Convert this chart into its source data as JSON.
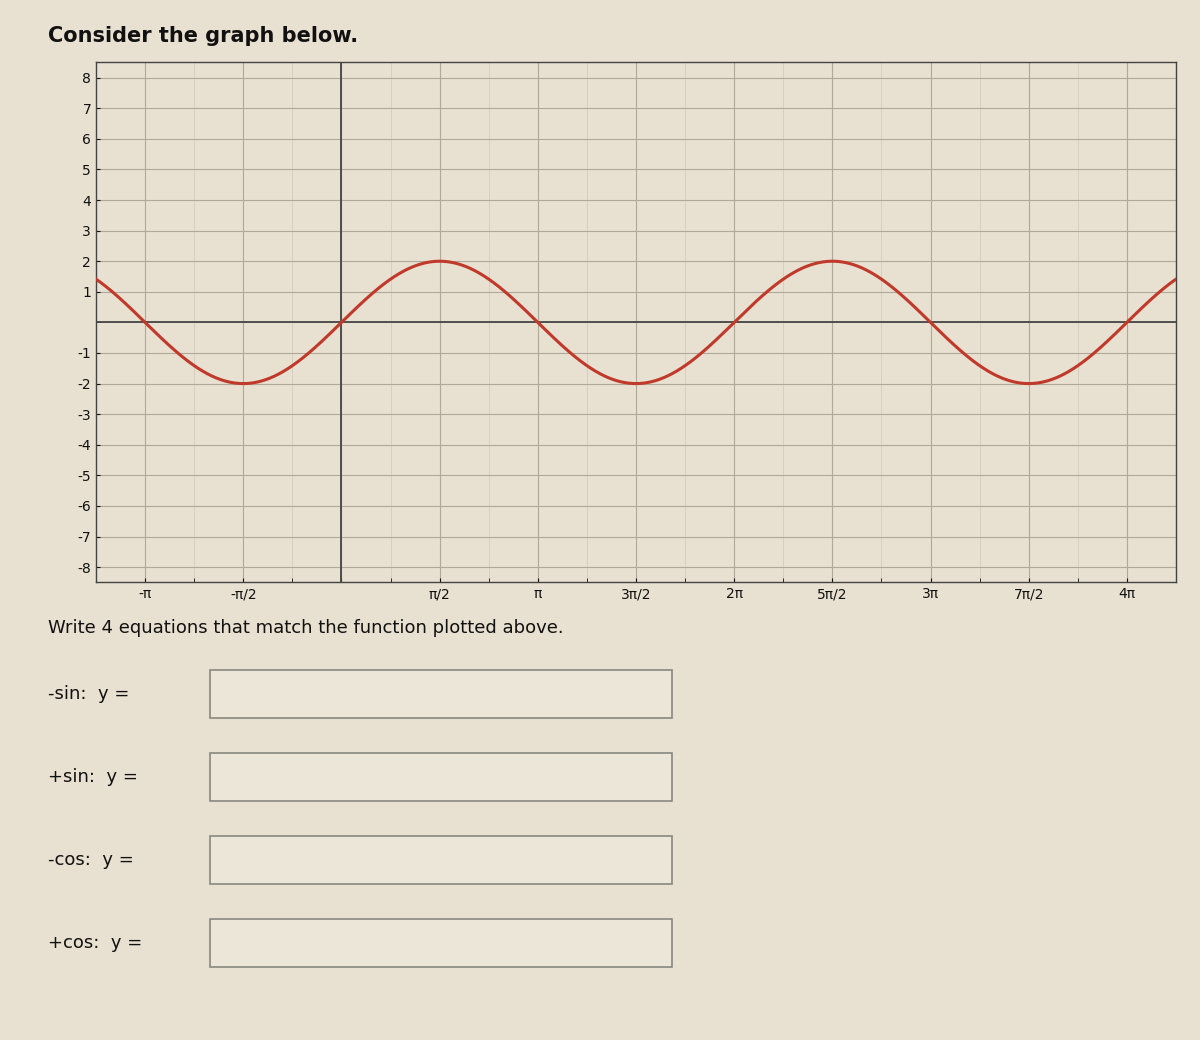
{
  "title": "Consider the graph below.",
  "amplitude": 2,
  "curve_color": "#c0392b",
  "curve_linewidth": 2.2,
  "xlim": [
    -3.926990816987242,
    13.351768777756622
  ],
  "ylim": [
    -8.5,
    8.5
  ],
  "x_ticks_pi": [
    -1,
    -0.5,
    0,
    0.5,
    1,
    1.5,
    2,
    2.5,
    3,
    3.5,
    4
  ],
  "x_tick_labels": [
    "-π",
    "-π/2",
    "",
    "π/2",
    "π",
    "3π/2",
    "2π",
    "5π/2",
    "3π",
    "7π/2",
    "4π"
  ],
  "y_ticks": [
    -8,
    -7,
    -6,
    -5,
    -4,
    -3,
    -2,
    -1,
    1,
    2,
    3,
    4,
    5,
    6,
    7,
    8
  ],
  "bg_color": "#e8e0d0",
  "grid_major_color": "#b0a898",
  "grid_minor_color": "#c8c0b0",
  "axes_color": "#444444",
  "label_color": "#111111",
  "title_fontsize": 15,
  "axis_label_fontsize": 10,
  "write_text": "Write 4 equations that match the function plotted above.",
  "write_text_fontsize": 13,
  "equation_labels": [
    "-sin:  y =",
    "+sin:  y =",
    "-cos:  y =",
    "+cos:  y ="
  ],
  "equation_label_fontsize": 13
}
